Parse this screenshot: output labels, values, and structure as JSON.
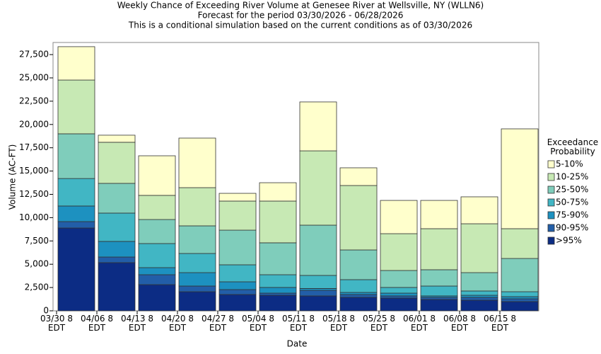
{
  "chart_data": {
    "type": "stacked_bar",
    "title": "Weekly Chance of Exceeding River Volume at Genesee River at Wellsville, NY (WLLN6)",
    "subtitle": "Forecast for the period 03/30/2026 - 06/28/2026",
    "note": "This is a conditional simulation based on the current conditions as of 03/30/2026",
    "x_label": "Date",
    "y_label": "Volume (AC-FT)",
    "legend_title": "Exceedance Probability",
    "categories": [
      "03/30 8 EDT",
      "04/06 8 EDT",
      "04/13 8 EDT",
      "04/20 8 EDT",
      "04/27 8 EDT",
      "05/04 8 EDT",
      "05/11 8 EDT",
      "05/18 8 EDT",
      "05/25 8 EDT",
      "06/01 8 EDT",
      "06/08 8 EDT",
      "06/15 8 EDT"
    ],
    "series": [
      {
        "name": ">95%",
        "color": "#0c2c84",
        "values": [
          8890,
          5170,
          2810,
          2050,
          1750,
          1670,
          1600,
          1445,
          1370,
          1215,
          1140,
          990
        ]
      },
      {
        "name": "90-95%",
        "color": "#225ea8",
        "values": [
          685,
          605,
          1065,
          610,
          530,
          230,
          600,
          305,
          230,
          230,
          305,
          300
        ]
      },
      {
        "name": "75-90%",
        "color": "#1d91c0",
        "values": [
          1675,
          1675,
          760,
          1440,
          835,
          610,
          200,
          225,
          300,
          155,
          225,
          230
        ]
      },
      {
        "name": "50-75%",
        "color": "#41b6c4",
        "values": [
          2950,
          3040,
          2585,
          2055,
          1825,
          1365,
          1400,
          1370,
          610,
          1060,
          460,
          530
        ]
      },
      {
        "name": "25-50%",
        "color": "#7fcdbb",
        "values": [
          4800,
          3190,
          2580,
          2965,
          3720,
          3425,
          5395,
          3190,
          1820,
          1750,
          1970,
          3570
        ]
      },
      {
        "name": "10-25%",
        "color": "#c7e9b4",
        "values": [
          5770,
          4410,
          2590,
          4100,
          3120,
          4480,
          7975,
          6915,
          3950,
          4405,
          5245,
          3195
        ]
      },
      {
        "name": "5-10%",
        "color": "#ffffcc",
        "values": [
          3580,
          760,
          4250,
          5320,
          830,
          1970,
          5250,
          1900,
          3570,
          3035,
          2890,
          10715
        ]
      }
    ],
    "ylim": [
      0,
      28800
    ],
    "yticks": [
      0,
      {
        "value": 2500,
        "label": "2,500"
      },
      {
        "value": 5000,
        "label": "5,000"
      },
      {
        "value": 7500,
        "label": "7,500"
      },
      {
        "value": 10000,
        "label": "10,000"
      },
      {
        "value": 12500,
        "label": "12,500"
      },
      {
        "value": 15000,
        "label": "15,000"
      },
      {
        "value": 17500,
        "label": "17,500"
      },
      {
        "value": 20000,
        "label": "20,000"
      },
      {
        "value": 22500,
        "label": "22,500"
      },
      {
        "value": 25000,
        "label": "25,000"
      },
      {
        "value": 27500,
        "label": "27,500"
      }
    ],
    "grid": false
  }
}
